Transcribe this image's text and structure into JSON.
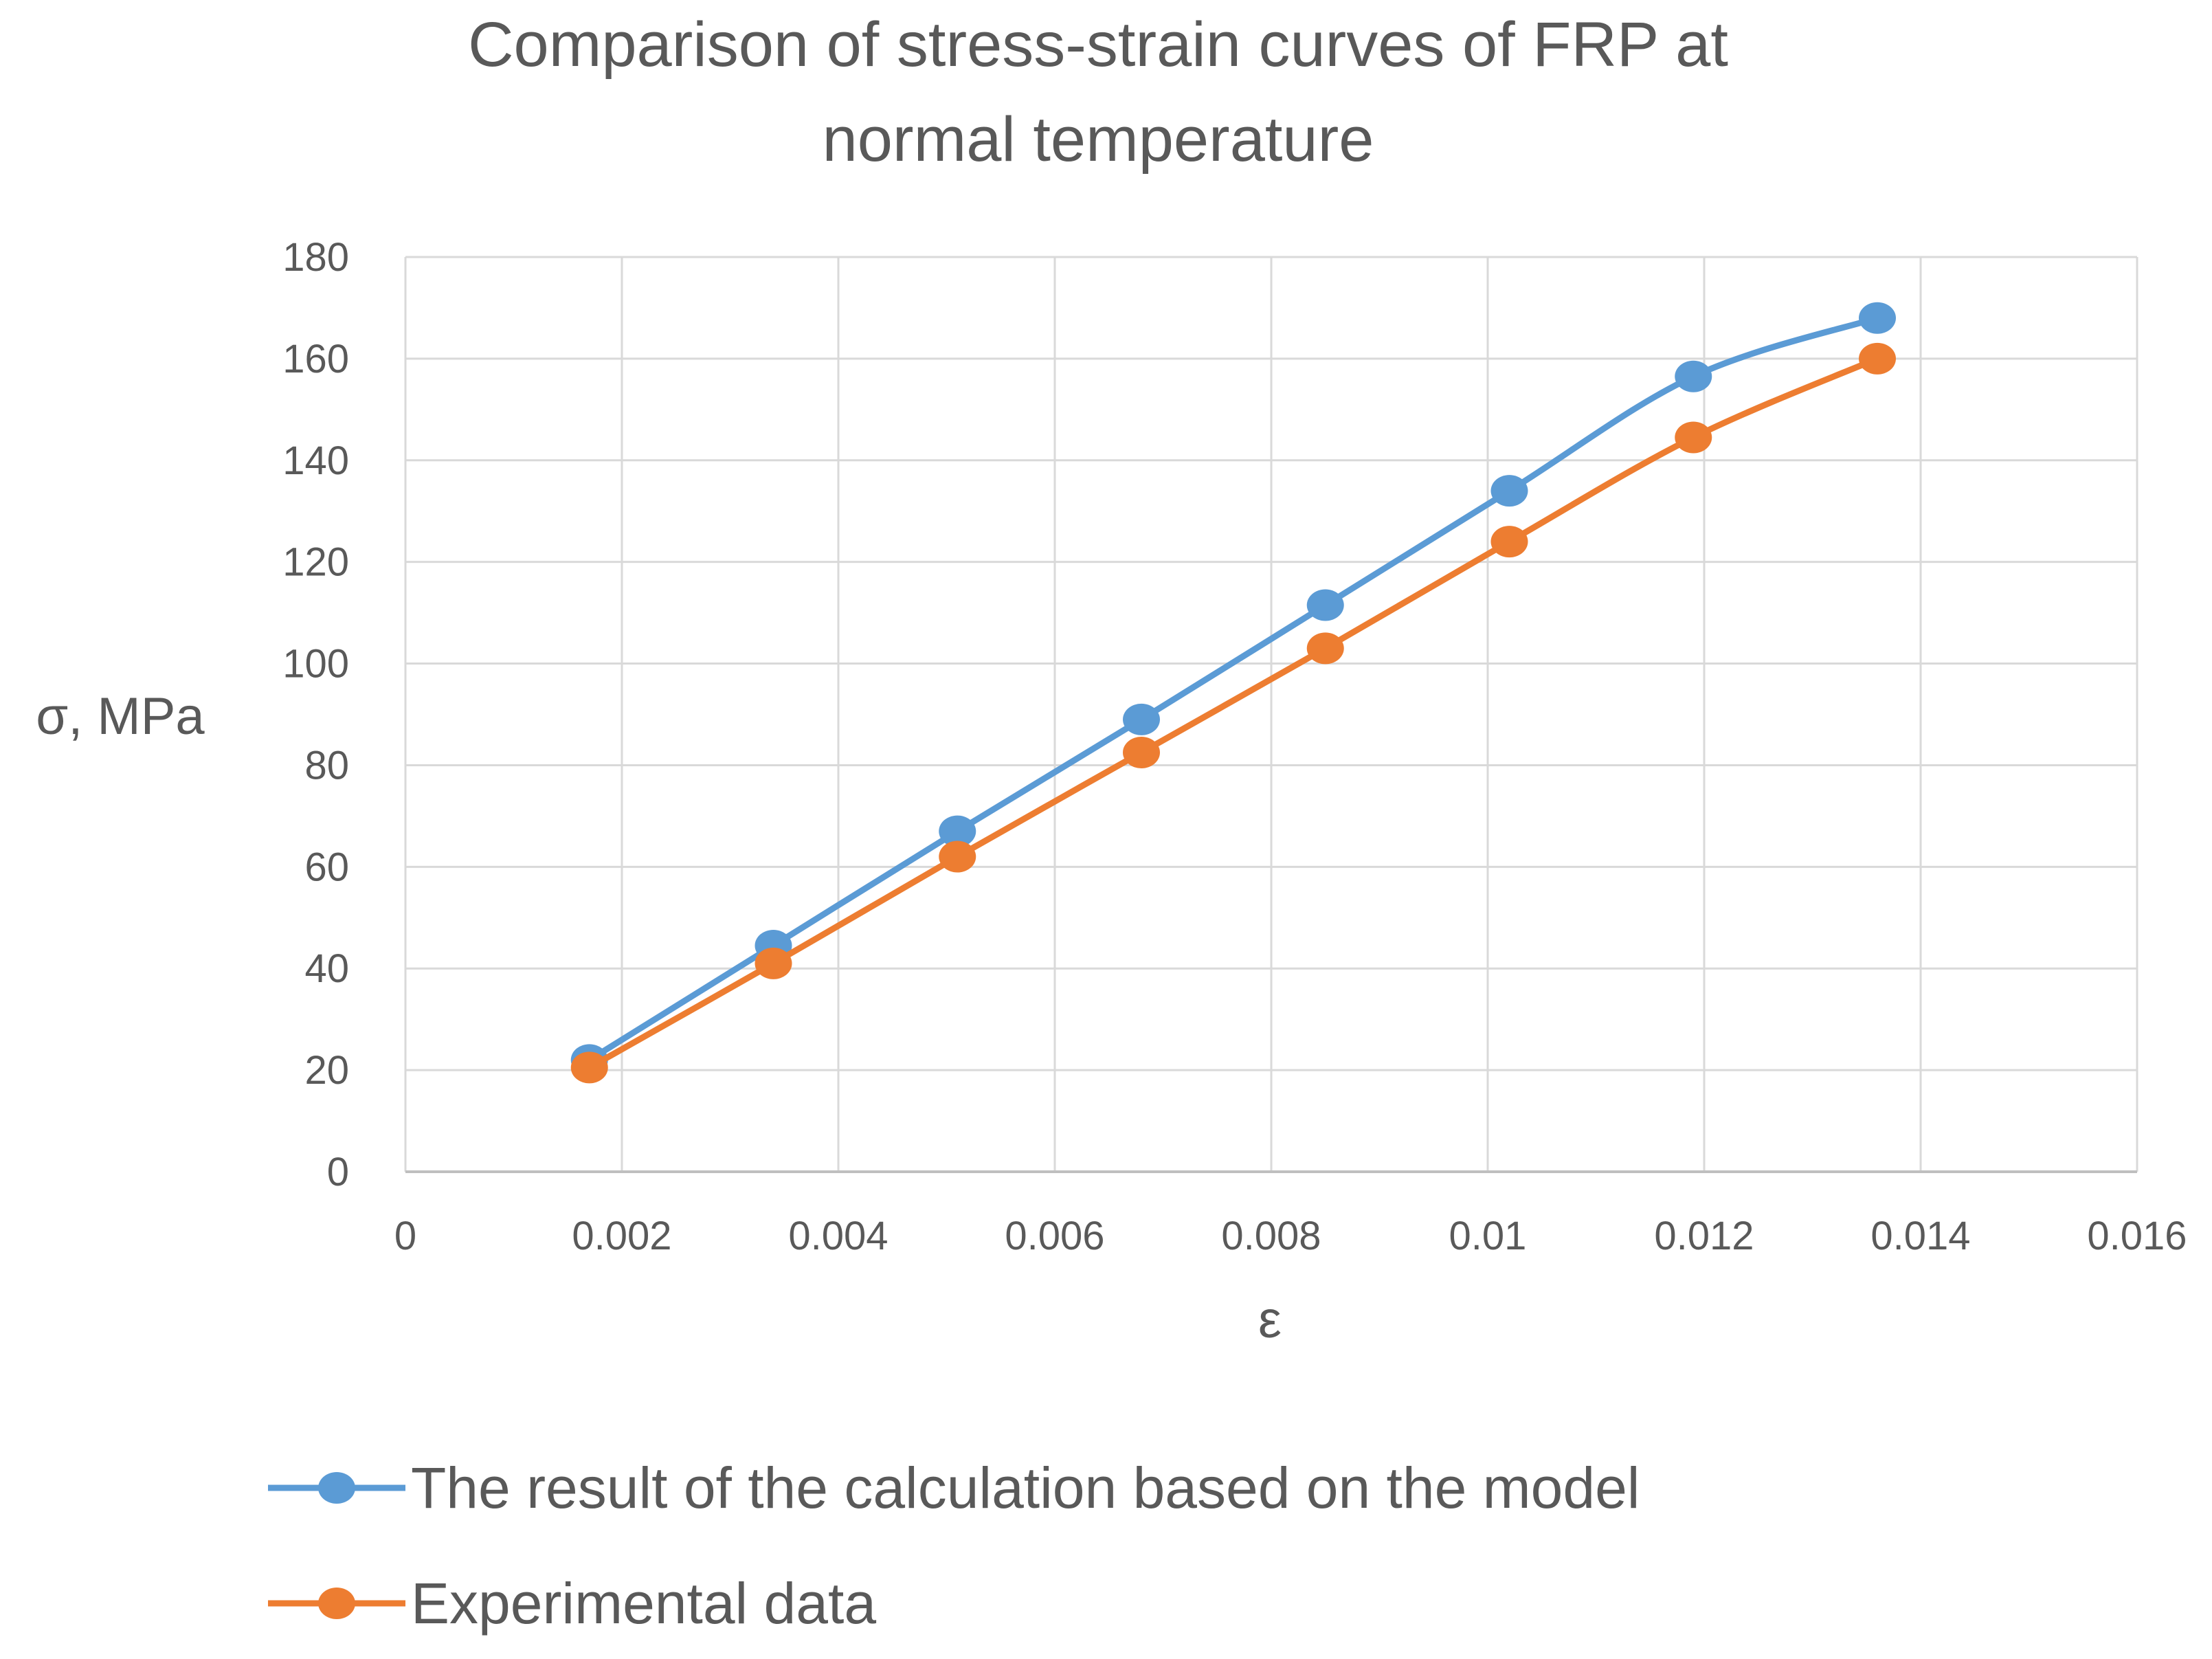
{
  "chart_data": {
    "type": "line",
    "title_lines": [
      "Comparison of stress-strain curves of FRP at",
      "normal temperature"
    ],
    "xlabel": "ε",
    "ylabel": "σ, MPa",
    "xlim": [
      0,
      0.016
    ],
    "ylim": [
      0,
      180
    ],
    "x_ticks": [
      0,
      0.002,
      0.004,
      0.006,
      0.008,
      0.01,
      0.012,
      0.014,
      0.016
    ],
    "x_tick_labels": [
      "0",
      "0.002",
      "0.004",
      "0.006",
      "0.008",
      "0.01",
      "0.012",
      "0.014",
      "0.016"
    ],
    "y_ticks": [
      0,
      20,
      40,
      60,
      80,
      100,
      120,
      140,
      160,
      180
    ],
    "y_tick_labels": [
      "0",
      "20",
      "40",
      "60",
      "80",
      "100",
      "120",
      "140",
      "160",
      "180"
    ],
    "grid": true,
    "legend_position": "bottom",
    "x": [
      0.0017,
      0.0034,
      0.0051,
      0.0068,
      0.0085,
      0.0102,
      0.0119,
      0.0136
    ],
    "series": [
      {
        "name": "The result of the calculation based on the model",
        "color": "#5B9BD5",
        "values": [
          22,
          44.5,
          67,
          89,
          111.5,
          134,
          156.5,
          168
        ]
      },
      {
        "name": "Experimental data",
        "color": "#ED7D31",
        "values": [
          20.5,
          41,
          62,
          82.5,
          103,
          124,
          144.5,
          160
        ]
      }
    ]
  }
}
